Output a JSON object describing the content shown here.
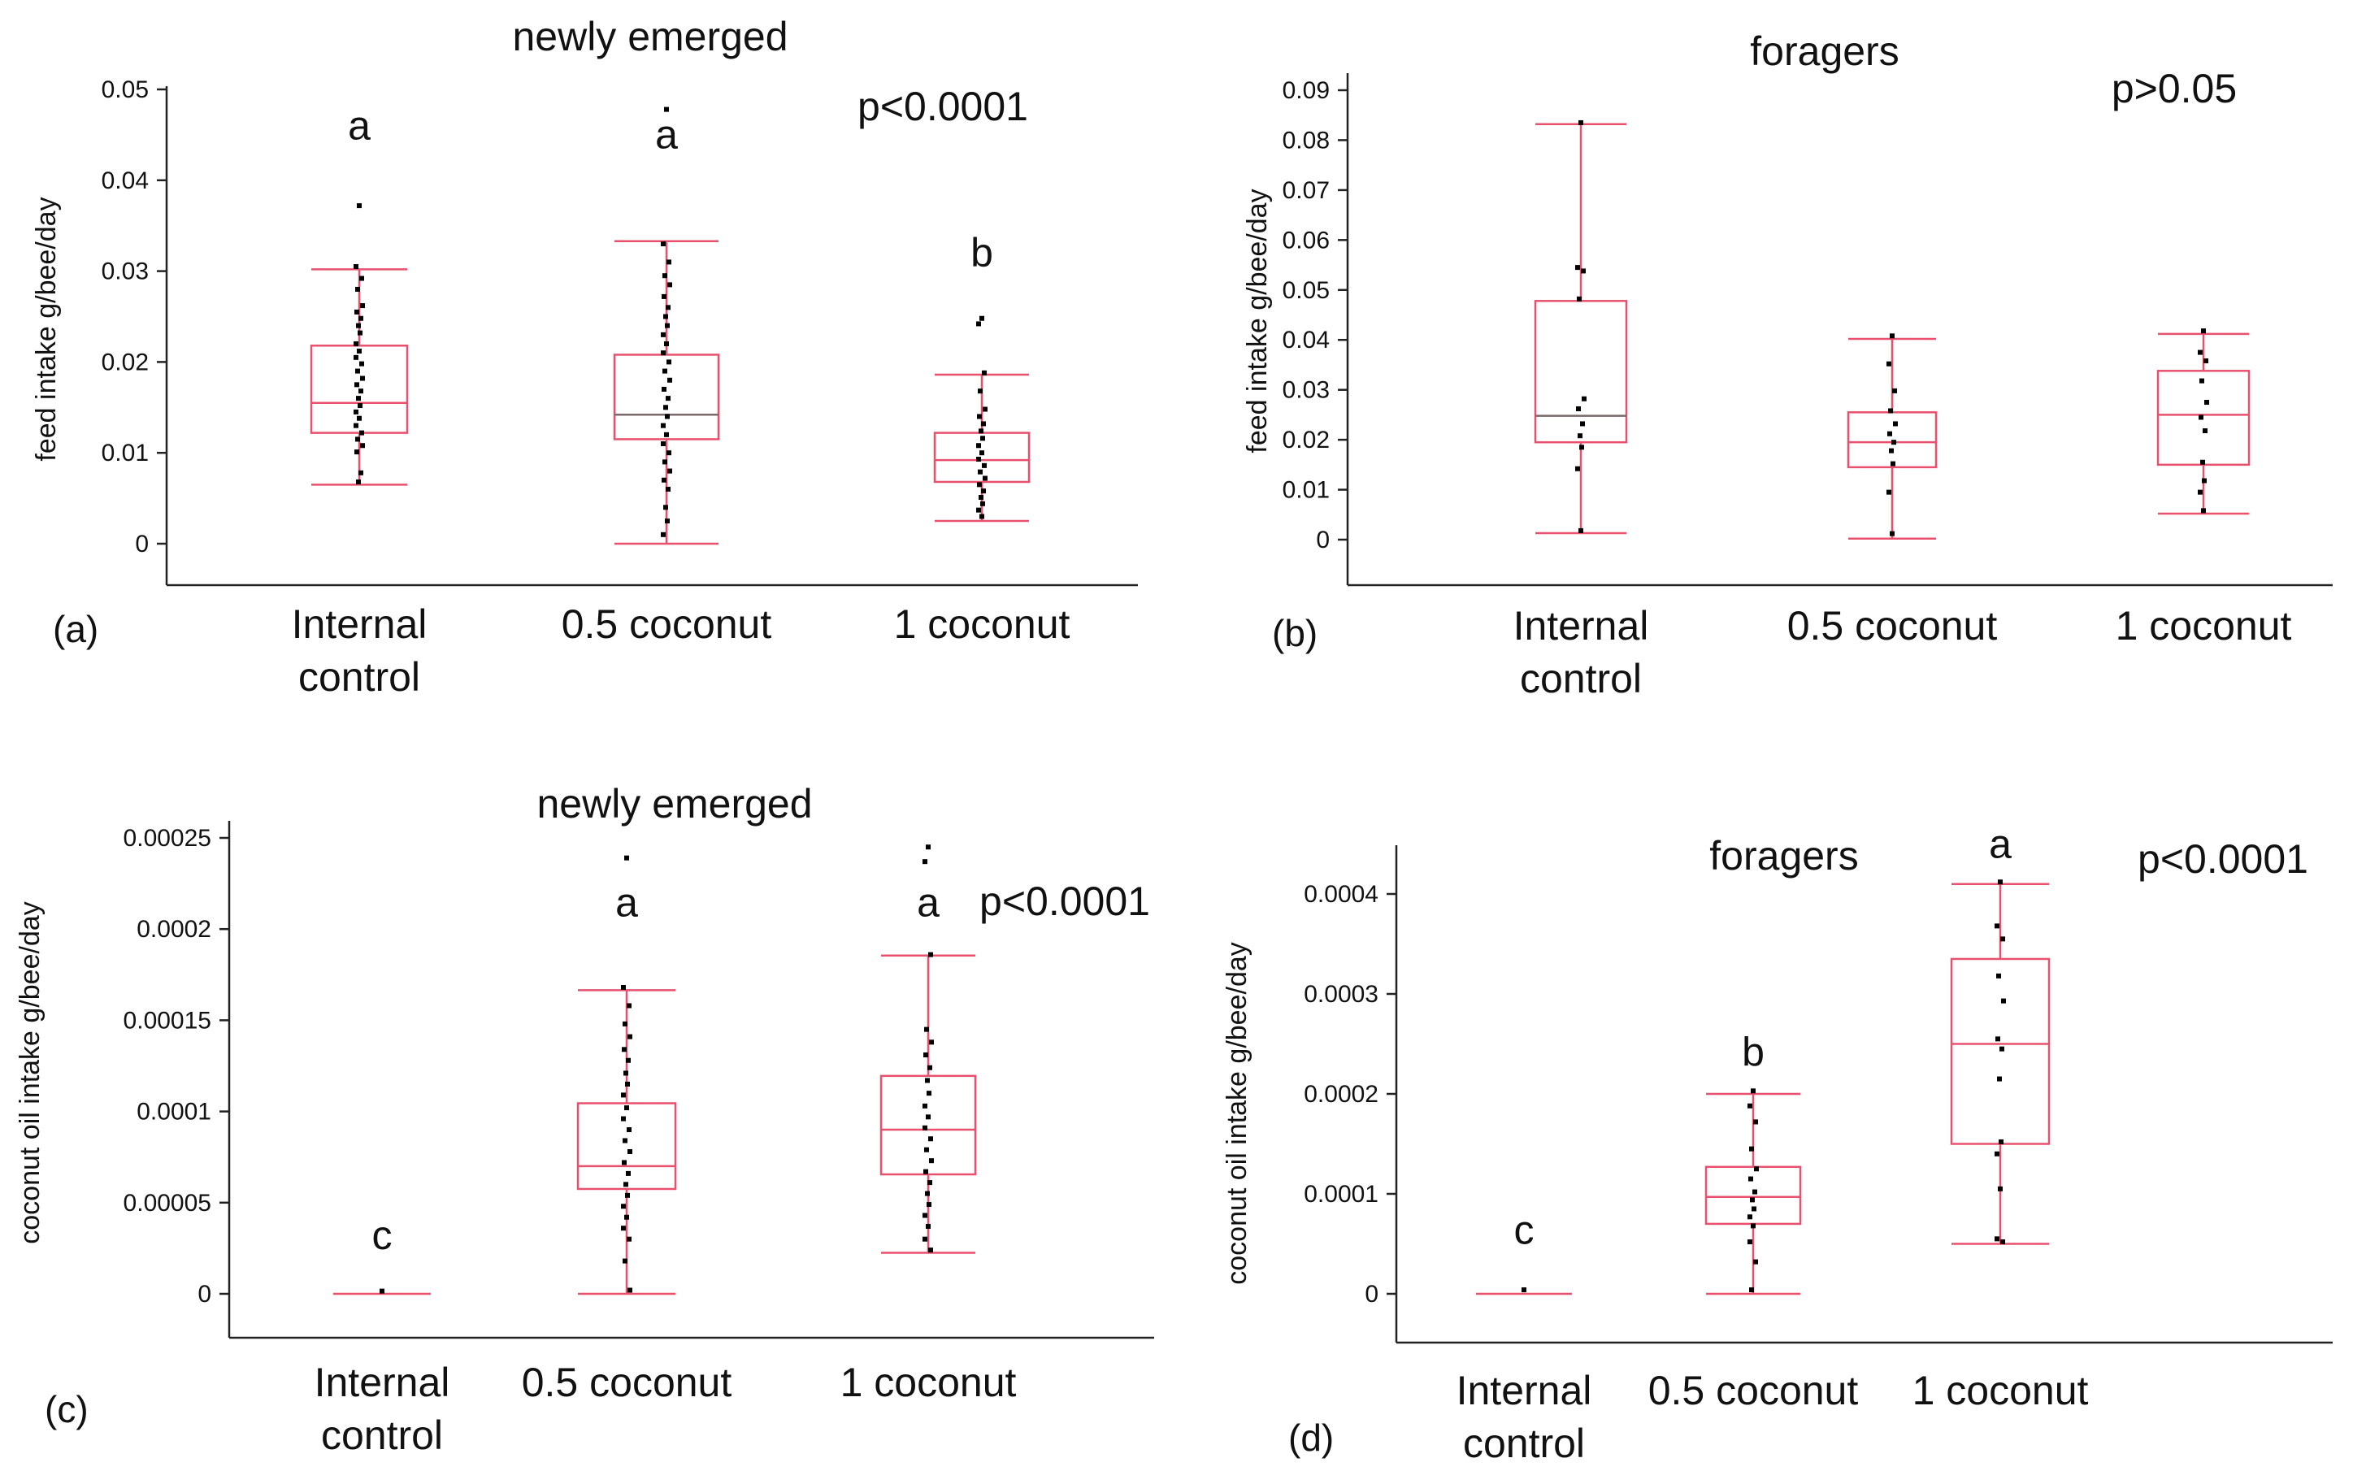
{
  "chart_data": [
    {
      "type": "box",
      "panel_label": "(a)",
      "title": "newly emerged",
      "ylabel": "feed intake g/bee/day",
      "p_value": "p<0.0001",
      "yticks": [
        "0",
        "0.01",
        "0.02",
        "0.03",
        "0.04",
        "0.05"
      ],
      "ylim": [
        -0.005,
        0.05
      ],
      "categories": [
        [
          "Internal",
          "control"
        ],
        [
          "0.5 coconut"
        ],
        [
          "1 coconut"
        ]
      ],
      "boxes": [
        {
          "whisker_low": 0.0065,
          "q1": 0.0122,
          "median": 0.0155,
          "q3": 0.0218,
          "whisker_high": 0.0302,
          "letter": "a",
          "letter_y": 0.0445,
          "points": [
            0.0372,
            0.0305,
            0.0292,
            0.028,
            0.0262,
            0.0255,
            0.0248,
            0.024,
            0.0232,
            0.022,
            0.0212,
            0.0205,
            0.0198,
            0.019,
            0.0182,
            0.0175,
            0.0168,
            0.016,
            0.0152,
            0.0145,
            0.0138,
            0.013,
            0.0122,
            0.0115,
            0.0108,
            0.0101,
            0.0078,
            0.0068
          ]
        },
        {
          "whisker_low": 0.0,
          "q1": 0.0115,
          "median": 0.0142,
          "q3": 0.0208,
          "whisker_high": 0.0333,
          "letter": "a",
          "letter_y": 0.0435,
          "points": [
            0.0478,
            0.033,
            0.031,
            0.0295,
            0.0285,
            0.0272,
            0.026,
            0.025,
            0.024,
            0.023,
            0.022,
            0.021,
            0.02,
            0.019,
            0.018,
            0.017,
            0.016,
            0.015,
            0.014,
            0.013,
            0.012,
            0.011,
            0.01,
            0.009,
            0.008,
            0.007,
            0.006,
            0.004,
            0.0025,
            0.001
          ]
        },
        {
          "whisker_low": 0.0025,
          "q1": 0.0068,
          "median": 0.0092,
          "q3": 0.0122,
          "whisker_high": 0.0186,
          "letter": "b",
          "letter_y": 0.0305,
          "points": [
            0.0248,
            0.0242,
            0.0188,
            0.0168,
            0.0148,
            0.014,
            0.0132,
            0.0124,
            0.0116,
            0.0108,
            0.01,
            0.0093,
            0.0086,
            0.0079,
            0.0072,
            0.0065,
            0.0058,
            0.0051,
            0.0044,
            0.0037,
            0.003
          ]
        }
      ]
    },
    {
      "type": "box",
      "panel_label": "(b)",
      "title": "foragers",
      "ylabel": "feed intake g/bee/day",
      "p_value": "p>0.05",
      "yticks": [
        "0",
        "0.01",
        "0.02",
        "0.03",
        "0.04",
        "0.05",
        "0.06",
        "0.07",
        "0.08",
        "0.09"
      ],
      "ylim": [
        -0.009,
        0.09
      ],
      "categories": [
        [
          "Internal",
          "control"
        ],
        [
          "0.5 coconut"
        ],
        [
          "1 coconut"
        ]
      ],
      "boxes": [
        {
          "whisker_low": 0.0013,
          "q1": 0.0195,
          "median": 0.0248,
          "q3": 0.0478,
          "whisker_high": 0.0832,
          "letter": "",
          "letter_y": 0,
          "points": [
            0.0835,
            0.0545,
            0.0538,
            0.0482,
            0.0282,
            0.0262,
            0.0232,
            0.0208,
            0.0185,
            0.0142,
            0.0018
          ]
        },
        {
          "whisker_low": 0.0002,
          "q1": 0.0145,
          "median": 0.0195,
          "q3": 0.0255,
          "whisker_high": 0.0402,
          "letter": "",
          "letter_y": 0,
          "points": [
            0.0408,
            0.0352,
            0.0298,
            0.0258,
            0.0232,
            0.0212,
            0.0195,
            0.0178,
            0.0152,
            0.0095,
            0.0012
          ]
        },
        {
          "whisker_low": 0.0052,
          "q1": 0.015,
          "median": 0.025,
          "q3": 0.0338,
          "whisker_high": 0.0412,
          "letter": "",
          "letter_y": 0,
          "points": [
            0.0418,
            0.0375,
            0.0358,
            0.0318,
            0.0275,
            0.0245,
            0.0218,
            0.0155,
            0.0118,
            0.0095,
            0.0058
          ]
        }
      ]
    },
    {
      "type": "box",
      "panel_label": "(c)",
      "title": "newly emerged",
      "ylabel": "coconut oil intake g/bee/day",
      "p_value": "p<0.0001",
      "yticks": [
        "0",
        "0.00005",
        "0.0001",
        "0.00015",
        "0.0002",
        "0.00025"
      ],
      "ylim": [
        -2.5e-05,
        0.00025
      ],
      "categories": [
        [
          "Internal",
          "control"
        ],
        [
          "0.5 coconut"
        ],
        [
          "1 coconut"
        ]
      ],
      "boxes": [
        {
          "whisker_low": 0.0,
          "q1": 0.0,
          "median": 0.0,
          "q3": 0.0,
          "whisker_high": 0.0,
          "letter": "c",
          "letter_y": 2.45e-05,
          "points": [
            1.5e-06
          ]
        },
        {
          "whisker_low": 0.0,
          "q1": 5.75e-05,
          "median": 7e-05,
          "q3": 0.0001045,
          "whisker_high": 0.0001665,
          "letter": "a",
          "letter_y": 0.000207,
          "points": [
            0.000239,
            0.000168,
            0.000158,
            0.000148,
            0.000141,
            0.000134,
            0.000128,
            0.000121,
            0.000115,
            0.000109,
            0.000102,
            9.6e-05,
            9e-05,
            8.4e-05,
            7.8e-05,
            7.2e-05,
            6.6e-05,
            6e-05,
            5.4e-05,
            4.8e-05,
            4.2e-05,
            3.6e-05,
            3e-05,
            1.8e-05,
            2e-06
          ]
        },
        {
          "whisker_low": 2.25e-05,
          "q1": 6.55e-05,
          "median": 9e-05,
          "q3": 0.0001195,
          "whisker_high": 0.0001855,
          "letter": "a",
          "letter_y": 0.000207,
          "points": [
            0.000245,
            0.000237,
            0.000186,
            0.000145,
            0.000138,
            0.000131,
            0.000124,
            0.000117,
            0.00011,
            0.000103,
            9.7e-05,
            9.1e-05,
            8.5e-05,
            7.9e-05,
            7.3e-05,
            6.7e-05,
            6.1e-05,
            5.5e-05,
            4.9e-05,
            4.3e-05,
            3.7e-05,
            3e-05,
            2.4e-05
          ]
        }
      ]
    },
    {
      "type": "box",
      "panel_label": "(d)",
      "title": "foragers",
      "ylabel": "coconut oil intake g/bee/day",
      "p_value": "p<0.0001",
      "yticks": [
        "0",
        "0.0001",
        "0.0002",
        "0.0003",
        "0.0004"
      ],
      "ylim": [
        -5e-05,
        0.00045
      ],
      "categories": [
        [
          "Internal",
          "control"
        ],
        [
          "0.5 coconut"
        ],
        [
          "1 coconut"
        ]
      ],
      "boxes": [
        {
          "whisker_low": 0.0,
          "q1": 0.0,
          "median": 0.0,
          "q3": 0.0,
          "whisker_high": 0.0,
          "letter": "c",
          "letter_y": 5e-05,
          "points": [
            4e-06
          ]
        },
        {
          "whisker_low": 0.0,
          "q1": 7e-05,
          "median": 9.7e-05,
          "q3": 0.000127,
          "whisker_high": 0.0002,
          "letter": "b",
          "letter_y": 0.000228,
          "points": [
            0.000203,
            0.000188,
            0.000172,
            0.000145,
            0.000125,
            0.000115,
            0.000102,
            9.4e-05,
            8.5e-05,
            7.7e-05,
            6.8e-05,
            5.2e-05,
            3.2e-05,
            4e-06
          ]
        },
        {
          "whisker_low": 5e-05,
          "q1": 0.00015,
          "median": 0.00025,
          "q3": 0.000335,
          "whisker_high": 0.00041,
          "letter": "a",
          "letter_y": 0.000436,
          "points": [
            0.000412,
            0.000368,
            0.000355,
            0.000318,
            0.000293,
            0.000255,
            0.000245,
            0.000215,
            0.000152,
            0.00014,
            0.000105,
            5.5e-05,
            5.2e-05
          ]
        }
      ]
    }
  ]
}
